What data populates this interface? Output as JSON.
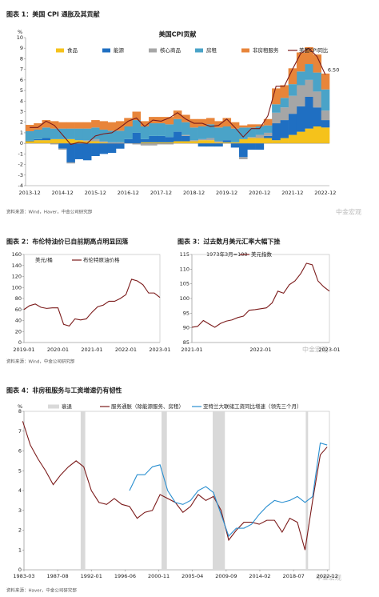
{
  "chart_data": [
    {
      "type": "bar",
      "stacked": true,
      "title": "图表 1：美国 CPI 通胀及其贡献",
      "subtitle": "美国CPI贡献",
      "ylabel": "%",
      "annotation": "6.50",
      "source": "资料来源：Wind，Haver，中金公司研究部",
      "watermark": "中金宏观",
      "categories": [
        "2013-12",
        null,
        null,
        null,
        "2014-12",
        null,
        null,
        null,
        "2015-12",
        null,
        null,
        null,
        "2016-12",
        null,
        null,
        null,
        "2017-12",
        null,
        null,
        null,
        "2018-12",
        null,
        null,
        null,
        "2019-12",
        null,
        null,
        null,
        "2020-12",
        null,
        null,
        null,
        "2021-12",
        null,
        null,
        null,
        "2022-12"
      ],
      "ylim": [
        -4,
        10
      ],
      "yticks": [
        -4,
        -3,
        -2,
        -1,
        0,
        1,
        2,
        3,
        4,
        5,
        6,
        7,
        8,
        9,
        10
      ],
      "series": [
        {
          "name": "食品",
          "type": "bar",
          "color": "#f5c21b",
          "values": [
            0.2,
            0.3,
            0.3,
            0.4,
            0.4,
            0.4,
            0.3,
            0.2,
            0.2,
            0.1,
            0.0,
            0.0,
            0.0,
            0.0,
            0.1,
            0.1,
            0.1,
            0.1,
            0.2,
            0.2,
            0.2,
            0.3,
            0.3,
            0.1,
            0.1,
            0.1,
            0.4,
            0.5,
            0.5,
            0.5,
            0.3,
            0.5,
            0.8,
            1.1,
            1.4,
            1.6,
            1.5
          ]
        },
        {
          "name": "能源",
          "type": "bar",
          "color": "#1f6fc2",
          "values": [
            0.05,
            0.1,
            0.2,
            0.0,
            -0.5,
            -1.8,
            -1.5,
            -1.6,
            -1.2,
            -1.0,
            -0.9,
            -0.5,
            0.4,
            1.0,
            0.3,
            0.6,
            0.6,
            0.5,
            0.9,
            0.5,
            0.0,
            -0.3,
            -0.3,
            -0.3,
            0.2,
            -0.4,
            -1.3,
            -0.6,
            -0.6,
            0.2,
            1.6,
            1.7,
            2.0,
            2.4,
            3.0,
            1.8,
            0.7
          ]
        },
        {
          "name": "核心商品",
          "type": "bar",
          "color": "#a6a6a6",
          "values": [
            0.0,
            0.0,
            0.0,
            -0.1,
            -0.1,
            -0.1,
            0.0,
            0.1,
            0.2,
            0.1,
            0.1,
            0.1,
            0.0,
            -0.1,
            -0.2,
            -0.2,
            -0.1,
            -0.1,
            0.0,
            0.1,
            0.1,
            0.1,
            0.2,
            0.1,
            0.0,
            0.0,
            -0.2,
            0.1,
            0.3,
            0.3,
            1.0,
            1.2,
            1.7,
            2.0,
            1.6,
            1.5,
            0.9
          ]
        },
        {
          "name": "房租",
          "type": "bar",
          "color": "#4aa3c8",
          "values": [
            0.9,
            0.9,
            1.0,
            1.0,
            1.0,
            1.0,
            1.1,
            1.1,
            1.1,
            1.1,
            1.1,
            1.1,
            1.2,
            1.2,
            1.2,
            1.2,
            1.2,
            1.2,
            1.2,
            1.2,
            1.2,
            1.2,
            1.3,
            1.3,
            1.3,
            1.3,
            1.1,
            0.9,
            0.8,
            0.7,
            0.8,
            0.9,
            1.1,
            1.3,
            1.5,
            1.8,
            2.0
          ]
        },
        {
          "name": "非房租服务",
          "type": "bar",
          "color": "#e8853a",
          "values": [
            0.6,
            0.6,
            0.7,
            0.7,
            0.6,
            0.6,
            0.6,
            0.6,
            0.7,
            0.8,
            0.8,
            0.9,
            0.8,
            0.8,
            0.5,
            0.6,
            0.6,
            0.7,
            0.8,
            0.7,
            0.8,
            0.7,
            0.6,
            0.6,
            0.8,
            0.6,
            0.2,
            0.3,
            0.2,
            0.6,
            1.5,
            1.2,
            1.5,
            1.8,
            1.6,
            1.7,
            1.5
          ]
        },
        {
          "name": "美国CPI同比",
          "type": "line",
          "color": "#7b1a1a",
          "values": [
            1.5,
            1.5,
            2.1,
            1.7,
            0.8,
            -0.1,
            0.1,
            0.0,
            0.7,
            0.9,
            1.0,
            1.5,
            2.1,
            2.4,
            1.6,
            2.2,
            2.1,
            2.4,
            2.9,
            2.3,
            1.9,
            1.9,
            1.6,
            1.7,
            2.3,
            1.5,
            0.6,
            1.4,
            1.4,
            2.6,
            5.4,
            5.4,
            7.0,
            8.5,
            9.0,
            8.2,
            6.5
          ]
        }
      ]
    },
    {
      "type": "line",
      "title": "图表 2：布伦特油价已自前期高点明显回落",
      "ylabel": "美元/桶",
      "source": "资料来源：Wind，中金公司研究部",
      "categories": [
        "2019-01",
        null,
        null,
        null,
        null,
        null,
        "2020-01",
        null,
        null,
        null,
        null,
        null,
        "2021-01",
        null,
        null,
        null,
        null,
        null,
        "2022-01",
        null,
        null,
        null,
        null,
        null,
        "2023-01"
      ],
      "ylim": [
        0,
        160
      ],
      "yticks": [
        0,
        20,
        40,
        60,
        80,
        100,
        120,
        140,
        160
      ],
      "series": [
        {
          "name": "布伦特原油价格",
          "color": "#7b1a1a",
          "values": [
            60,
            67,
            70,
            64,
            62,
            63,
            63,
            33,
            30,
            43,
            41,
            43,
            55,
            65,
            68,
            75,
            75,
            80,
            87,
            115,
            112,
            105,
            90,
            90,
            82
          ]
        }
      ]
    },
    {
      "type": "line",
      "title": "图表 3：过去数月美元汇率大幅下挫",
      "ylabel": "1973年3月=100",
      "watermark": "中金宏观",
      "categories": [
        "2021-01",
        null,
        null,
        null,
        null,
        null,
        null,
        null,
        null,
        null,
        null,
        null,
        "2022-01",
        null,
        null,
        null,
        null,
        null,
        null,
        null,
        null,
        null,
        null,
        null,
        "2023-01"
      ],
      "ylim": [
        85,
        115
      ],
      "yticks": [
        85,
        90,
        95,
        100,
        105,
        110,
        115
      ],
      "series": [
        {
          "name": "美元指数",
          "color": "#7b1a1a",
          "values": [
            90.2,
            90.5,
            92.5,
            91.3,
            90.2,
            91.5,
            92.3,
            92.7,
            93.5,
            94.0,
            96.0,
            96.2,
            96.5,
            96.8,
            98.5,
            102.5,
            101.8,
            104.7,
            106.0,
            108.5,
            112.0,
            111.5,
            106.0,
            104.0,
            102.5
          ]
        }
      ]
    },
    {
      "type": "line",
      "title": "图表 4：非房租服务与工资增速仍有韧性",
      "ylabel": "%",
      "source": "资料来源：Haver，中金公司研究部",
      "watermark": "中金宏观",
      "recession_name": "衰退",
      "recession_color": "#d9d9d9",
      "recessions": [
        [
          1990.6,
          1991.2
        ],
        [
          2001.2,
          2001.9
        ],
        [
          2007.9,
          2009.5
        ],
        [
          2020.1,
          2020.4
        ]
      ],
      "x": [
        1983,
        1984,
        1985,
        1986,
        1987,
        1988,
        1989,
        1990,
        1991,
        1992,
        1993,
        1994,
        1995,
        1996,
        1997,
        1998,
        1999,
        2000,
        2001,
        2002,
        2003,
        2004,
        2005,
        2006,
        2007,
        2008,
        2009,
        2010,
        2011,
        2012,
        2013,
        2014,
        2015,
        2016,
        2017,
        2018,
        2019,
        2020,
        2021,
        2022,
        2022.9
      ],
      "xlim": [
        1983.17,
        2023.2
      ],
      "xticks": [
        {
          "value": 1983.17,
          "label": "1983-03"
        },
        {
          "value": 1987.58,
          "label": "1987-08"
        },
        {
          "value": 1992.0,
          "label": "1992-01"
        },
        {
          "value": 1996.42,
          "label": "1996-06"
        },
        {
          "value": 2000.83,
          "label": "2000-11"
        },
        {
          "value": 2005.25,
          "label": "2005-04"
        },
        {
          "value": 2009.67,
          "label": "2009-09"
        },
        {
          "value": 2014.08,
          "label": "2014-02"
        },
        {
          "value": 2018.5,
          "label": "2018-07"
        },
        {
          "value": 2022.92,
          "label": "2022-12"
        }
      ],
      "ylim": [
        0,
        8
      ],
      "yticks": [
        0,
        1,
        2,
        3,
        4,
        5,
        6,
        7,
        8
      ],
      "series": [
        {
          "name": "服务通胀（除能源服务、房租）",
          "color": "#7b1a1a",
          "values": [
            7.5,
            6.3,
            5.6,
            5.0,
            4.3,
            4.8,
            5.2,
            5.5,
            5.2,
            4.0,
            3.4,
            3.3,
            3.6,
            3.3,
            3.2,
            2.6,
            2.9,
            3.0,
            3.8,
            3.6,
            3.4,
            2.9,
            3.2,
            3.8,
            3.5,
            3.7,
            3.0,
            1.5,
            2.0,
            2.4,
            2.4,
            2.3,
            2.5,
            2.5,
            1.9,
            2.6,
            2.4,
            1.0,
            3.5,
            5.8,
            6.2
          ]
        },
        {
          "name": "亚特兰大联储工资同比增速（领先三个月）",
          "color": "#2a8fd0",
          "values": [
            null,
            null,
            null,
            null,
            null,
            null,
            null,
            null,
            null,
            null,
            null,
            null,
            null,
            null,
            4.0,
            4.8,
            4.8,
            5.2,
            5.3,
            4.0,
            3.4,
            3.3,
            3.5,
            4.0,
            4.2,
            3.9,
            2.8,
            1.7,
            2.1,
            2.1,
            2.3,
            2.8,
            3.2,
            3.5,
            3.4,
            3.5,
            3.7,
            3.4,
            3.7,
            6.4,
            6.3
          ]
        }
      ]
    }
  ]
}
